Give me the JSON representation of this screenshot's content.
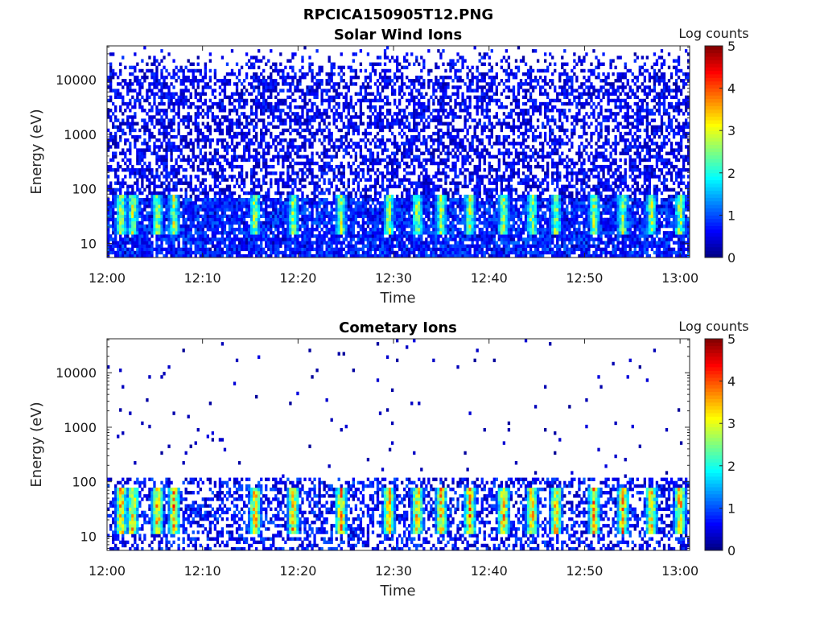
{
  "figure_title": "RPCICA150905T12.PNG",
  "chart_data": [
    {
      "type": "heatmap",
      "title": "Solar Wind Ions",
      "xlabel": "Time",
      "ylabel": "Energy (eV)",
      "y_scale": "log",
      "ylim": [
        5.5,
        42000
      ],
      "xlim": [
        "12:00",
        "13:01"
      ],
      "x_ticks": [
        "12:00",
        "12:10",
        "12:20",
        "12:30",
        "12:40",
        "12:50",
        "13:00"
      ],
      "y_ticks": [
        "10",
        "100",
        "1000",
        "10000"
      ],
      "colorbar": {
        "label": "Log counts",
        "min": 0,
        "max": 5,
        "ticks": [
          "0",
          "1",
          "2",
          "3",
          "4",
          "5"
        ],
        "colormap": "jet"
      },
      "features": {
        "background_level": "counts at 0-1 log counts spread across 5.5-42000 eV, densest below 10000 eV",
        "bursts_minutes": [
          1.5,
          2.7,
          5.3,
          7.0,
          15.5,
          19.5,
          24.5,
          29.5,
          32.5,
          35.0,
          38.0,
          41.5,
          44.5,
          47.0,
          51.0,
          54.0,
          57.0,
          60.0
        ],
        "burst_energy_ev": [
          20,
          70
        ],
        "burst_peak_log_counts": 3.5
      }
    },
    {
      "type": "heatmap",
      "title": "Cometary Ions",
      "xlabel": "Time",
      "ylabel": "Energy (eV)",
      "y_scale": "log",
      "ylim": [
        5.5,
        42000
      ],
      "xlim": [
        "12:00",
        "13:01"
      ],
      "x_ticks": [
        "12:00",
        "12:10",
        "12:20",
        "12:30",
        "12:40",
        "12:50",
        "13:00"
      ],
      "y_ticks": [
        "10",
        "100",
        "1000",
        "10000"
      ],
      "colorbar": {
        "label": "Log counts",
        "min": 0,
        "max": 5,
        "ticks": [
          "0",
          "1",
          "2",
          "3",
          "4",
          "5"
        ],
        "colormap": "jet"
      },
      "features": {
        "background_level": "counts below 130 eV, sparse isolated points up to 30000 eV",
        "bursts_minutes": [
          1.5,
          2.7,
          5.3,
          7.0,
          15.5,
          19.5,
          24.5,
          29.5,
          32.5,
          35.0,
          38.0,
          41.5,
          44.5,
          47.0,
          51.0,
          54.0,
          57.0,
          60.0
        ],
        "burst_energy_ev": [
          15,
          70
        ],
        "burst_peak_log_counts": 4.5
      }
    }
  ]
}
